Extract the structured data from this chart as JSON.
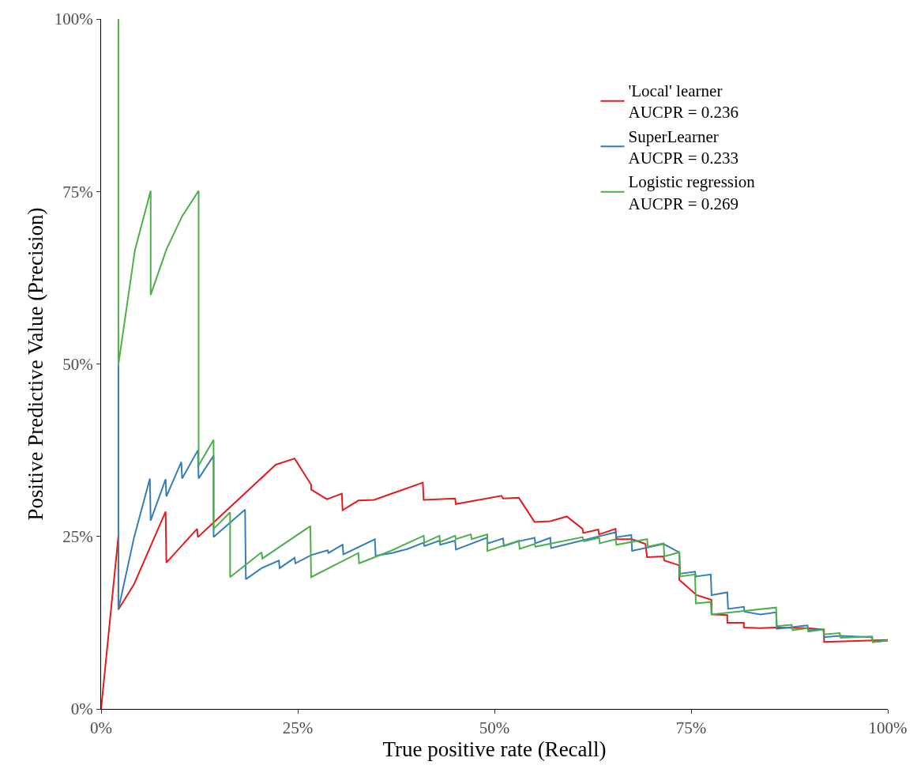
{
  "chart_data": {
    "type": "line",
    "xlabel": "True positive rate (Recall)",
    "ylabel": "Positive Predictive Value (Precision)",
    "xlim": [
      0,
      100
    ],
    "ylim": [
      0,
      100
    ],
    "xticks": [
      {
        "value": 0,
        "label": "0%"
      },
      {
        "value": 25,
        "label": "25%"
      },
      {
        "value": 50,
        "label": "50%"
      },
      {
        "value": 75,
        "label": "75%"
      },
      {
        "value": 100,
        "label": "100%"
      }
    ],
    "yticks": [
      {
        "value": 0,
        "label": "0%"
      },
      {
        "value": 25,
        "label": "25%"
      },
      {
        "value": 50,
        "label": "50%"
      },
      {
        "value": 75,
        "label": "75%"
      },
      {
        "value": 100,
        "label": "100%"
      }
    ],
    "grid": false,
    "legend": "top right",
    "line_style": "solid",
    "marker": "none",
    "series": [
      {
        "name": "'Local' learner\nAUCPR = 0.236",
        "color": "#e41a1c",
        "x": [
          0,
          2.2,
          2.2,
          4.2,
          8.2,
          8.3,
          12.2,
          12.3,
          22.2,
          24.6,
          26.7,
          26.7,
          28.7,
          30.6,
          30.7,
          32.7,
          34.7,
          40.9,
          41.0,
          45.0,
          45.1,
          50.9,
          51.1,
          53.1,
          55.1,
          57.1,
          59.2,
          61.2,
          61.3,
          63.2,
          63.3,
          65.4,
          65.5,
          67.5,
          69.2,
          69.4,
          71.5,
          71.6,
          73.5,
          73.5,
          75.7,
          77.6,
          77.6,
          79.6,
          79.6,
          81.7,
          81.7,
          83.8,
          85.8,
          89.8,
          91.9,
          91.9,
          100
        ],
        "values": [
          0,
          25.1,
          14.4,
          18.1,
          28.6,
          21.2,
          26.1,
          24.9,
          35.4,
          36.3,
          32.5,
          31.8,
          30.4,
          31.2,
          28.8,
          30.2,
          30.3,
          32.8,
          30.3,
          30.5,
          29.7,
          30.9,
          30.5,
          30.6,
          27.1,
          27.2,
          27.9,
          26.1,
          25.5,
          26.0,
          25.3,
          26.1,
          24.6,
          24.6,
          23.9,
          22.0,
          22.1,
          21.5,
          20.8,
          18.7,
          16.5,
          15.8,
          13.7,
          13.6,
          12.5,
          12.5,
          11.8,
          11.7,
          11.8,
          11.7,
          11.5,
          9.7,
          10.0
        ]
      },
      {
        "name": "SuperLearner\nAUCPR = 0.233",
        "color": "#377eb8",
        "x": [
          2.2,
          2.2,
          4.2,
          6.2,
          6.3,
          8.2,
          8.3,
          10.2,
          10.3,
          12.3,
          12.4,
          14.3,
          14.3,
          18.3,
          18.4,
          20.4,
          22.6,
          22.7,
          24.6,
          24.7,
          26.7,
          28.8,
          28.9,
          30.7,
          30.8,
          34.8,
          34.9,
          37.0,
          39.0,
          41.0,
          41.1,
          43.0,
          43.1,
          45.0,
          45.1,
          49.0,
          49.2,
          51.1,
          51.2,
          53.1,
          55.1,
          55.2,
          57.1,
          57.2,
          65.4,
          65.5,
          67.4,
          67.5,
          71.5,
          73.5,
          73.6,
          75.5,
          75.6,
          77.5,
          77.6,
          79.6,
          79.7,
          81.7,
          81.8,
          83.8,
          85.8,
          85.9,
          89.8,
          89.9,
          91.8,
          91.9,
          93.9,
          98.0,
          98.1,
          100
        ],
        "values": [
          49.9,
          14.4,
          24.9,
          33.4,
          27.3,
          33.3,
          30.8,
          35.8,
          33.4,
          37.5,
          33.4,
          36.7,
          24.9,
          28.9,
          18.8,
          20.4,
          21.5,
          20.4,
          21.9,
          21.1,
          22.3,
          23.0,
          22.6,
          23.8,
          22.4,
          24.6,
          22.2,
          22.6,
          23.2,
          24.1,
          23.6,
          24.4,
          23.8,
          24.4,
          23.1,
          24.8,
          24.0,
          24.7,
          23.6,
          24.3,
          24.8,
          24.0,
          24.8,
          23.3,
          25.6,
          24.9,
          25.2,
          22.9,
          23.9,
          22.7,
          19.6,
          19.9,
          19.2,
          19.5,
          16.5,
          16.9,
          14.5,
          14.8,
          14.1,
          13.7,
          14.0,
          11.6,
          12.1,
          11.4,
          11.5,
          10.4,
          10.6,
          10.4,
          9.7,
          9.9
        ]
      },
      {
        "name": "Logistic regression\nAUCPR = 0.269",
        "color": "#4daf4a",
        "x": [
          2.2,
          2.2,
          4.3,
          6.3,
          6.3,
          8.3,
          10.3,
          12.4,
          12.4,
          14.3,
          14.3,
          16.4,
          16.4,
          20.4,
          20.5,
          26.6,
          26.7,
          32.7,
          32.8,
          37.0,
          41.0,
          41.1,
          43.0,
          43.1,
          45.0,
          45.1,
          47.0,
          47.1,
          49.1,
          49.1,
          53.1,
          53.2,
          55.1,
          55.2,
          61.2,
          61.4,
          63.3,
          63.4,
          65.4,
          65.5,
          69.4,
          69.5,
          71.5,
          71.6,
          73.5,
          73.6,
          75.5,
          75.6,
          77.5,
          77.6,
          85.8,
          85.9,
          87.8,
          87.9,
          89.8,
          89.9,
          91.8,
          91.9,
          93.9,
          94.0,
          98.0,
          98.1,
          100
        ],
        "values": [
          100,
          49.9,
          66.5,
          75.1,
          60.0,
          66.6,
          71.4,
          75.1,
          35.3,
          39.0,
          26.1,
          28.5,
          19.1,
          22.7,
          21.8,
          26.5,
          19.1,
          22.6,
          21.1,
          23.0,
          25.1,
          24.1,
          25.1,
          24.2,
          25.1,
          24.6,
          25.3,
          24.6,
          25.3,
          22.9,
          24.4,
          23.2,
          23.9,
          23.5,
          24.9,
          24.3,
          24.8,
          24.0,
          24.6,
          23.8,
          24.6,
          23.5,
          24.0,
          22.1,
          22.7,
          19.2,
          19.5,
          15.3,
          15.5,
          13.7,
          14.7,
          12.0,
          12.2,
          11.4,
          11.7,
          11.2,
          11.5,
          10.8,
          11.0,
          10.3,
          10.5,
          9.7,
          9.9
        ]
      }
    ]
  }
}
